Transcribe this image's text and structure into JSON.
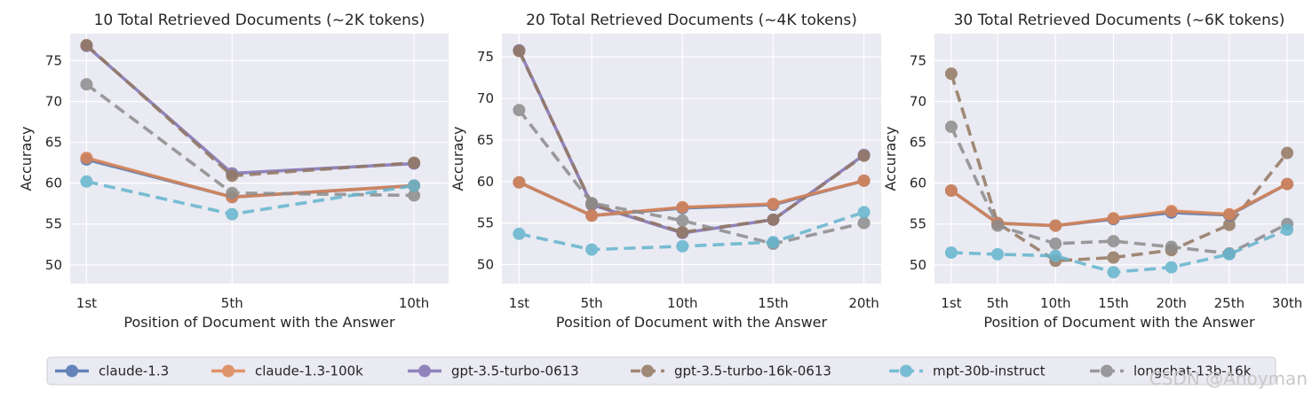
{
  "chart_data": [
    {
      "type": "line",
      "title": "10 Total Retrieved Documents (~2K tokens)",
      "xlabel": "Position of Document with the Answer",
      "ylabel": "Accuracy",
      "x_positions": [
        1,
        5,
        10
      ],
      "x_ticklabels": [
        "1st",
        "5th",
        "10th"
      ],
      "xlim": [
        0.55,
        10.95
      ],
      "ylim": [
        47.7,
        78.3
      ],
      "yticks": [
        50,
        55,
        60,
        65,
        70,
        75
      ],
      "grid": true,
      "series": [
        {
          "name": "claude-1.3",
          "values": [
            62.9,
            58.3,
            59.7
          ]
        },
        {
          "name": "claude-1.3-100k",
          "values": [
            63.1,
            58.3,
            59.7
          ]
        },
        {
          "name": "gpt-3.5-turbo-0613",
          "values": [
            76.8,
            61.2,
            62.4
          ]
        },
        {
          "name": "gpt-3.5-turbo-16k-0613",
          "values": [
            76.9,
            60.9,
            62.5
          ]
        },
        {
          "name": "mpt-30b-instruct",
          "values": [
            60.2,
            56.2,
            59.7
          ]
        },
        {
          "name": "longchat-13b-16k",
          "values": [
            72.1,
            58.8,
            58.5
          ]
        }
      ]
    },
    {
      "type": "line",
      "title": "20 Total Retrieved Documents (~4K tokens)",
      "xlabel": "Position of Document with the Answer",
      "ylabel": "Accuracy",
      "x_positions": [
        1,
        5,
        10,
        15,
        20
      ],
      "x_ticklabels": [
        "1st",
        "5th",
        "10th",
        "15th",
        "20th"
      ],
      "xlim": [
        0.05,
        20.95
      ],
      "ylim": [
        47.7,
        77.8
      ],
      "yticks": [
        50,
        55,
        60,
        65,
        70,
        75
      ],
      "grid": true,
      "series": [
        {
          "name": "claude-1.3",
          "values": [
            59.9,
            55.9,
            56.8,
            57.2,
            60.1
          ]
        },
        {
          "name": "claude-1.3-100k",
          "values": [
            59.9,
            55.9,
            56.9,
            57.3,
            60.1
          ]
        },
        {
          "name": "gpt-3.5-turbo-0613",
          "values": [
            75.8,
            57.2,
            53.8,
            55.4,
            63.2
          ]
        },
        {
          "name": "gpt-3.5-turbo-16k-0613",
          "values": [
            75.7,
            57.3,
            53.9,
            55.4,
            63.1
          ]
        },
        {
          "name": "mpt-30b-instruct",
          "values": [
            53.7,
            51.8,
            52.2,
            52.7,
            56.3
          ]
        },
        {
          "name": "longchat-13b-16k",
          "values": [
            68.6,
            57.4,
            55.3,
            52.5,
            55.0
          ]
        }
      ]
    },
    {
      "type": "line",
      "title": "30 Total Retrieved Documents (~6K tokens)",
      "xlabel": "Position of Document with the Answer",
      "ylabel": "Accuracy",
      "x_positions": [
        1,
        5,
        10,
        15,
        20,
        25,
        30
      ],
      "x_ticklabels": [
        "1st",
        "5th",
        "10th",
        "15th",
        "20th",
        "25th",
        "30th"
      ],
      "xlim": [
        -0.45,
        31.45
      ],
      "ylim": [
        47.7,
        78.3
      ],
      "yticks": [
        50,
        55,
        60,
        65,
        70,
        75
      ],
      "grid": true,
      "series": [
        {
          "name": "claude-1.3",
          "values": [
            59.1,
            55.1,
            54.8,
            55.6,
            56.4,
            56.1,
            59.9
          ]
        },
        {
          "name": "claude-1.3-100k",
          "values": [
            59.1,
            55.1,
            54.8,
            55.7,
            56.6,
            56.2,
            59.9
          ]
        },
        {
          "name": "gpt-3.5-turbo-0613",
          "values": [
            null,
            null,
            null,
            null,
            null,
            null,
            null
          ]
        },
        {
          "name": "gpt-3.5-turbo-16k-0613",
          "values": [
            73.4,
            55.1,
            50.5,
            50.9,
            51.8,
            54.9,
            63.7
          ]
        },
        {
          "name": "mpt-30b-instruct",
          "values": [
            51.5,
            51.3,
            51.1,
            49.1,
            49.7,
            51.3,
            54.3
          ]
        },
        {
          "name": "longchat-13b-16k",
          "values": [
            66.9,
            54.8,
            52.6,
            52.9,
            52.2,
            51.4,
            55.0
          ]
        }
      ]
    }
  ],
  "legend": {
    "placement": "bottom",
    "entries": [
      {
        "name": "claude-1.3",
        "color": "#4c72b0",
        "dashed": false
      },
      {
        "name": "claude-1.3-100k",
        "color": "#dd8452",
        "dashed": false
      },
      {
        "name": "gpt-3.5-turbo-0613",
        "color": "#8172b3",
        "dashed": false
      },
      {
        "name": "gpt-3.5-turbo-16k-0613",
        "color": "#937860",
        "dashed": true
      },
      {
        "name": "mpt-30b-instruct",
        "color": "#64b5cd",
        "dashed": true
      },
      {
        "name": "longchat-13b-16k",
        "color": "#8c8c8c",
        "dashed": true
      }
    ]
  },
  "colors": {
    "plot_background": "#eaeaf2",
    "grid": "#ffffff"
  },
  "watermark": "CSDN @Anoyman"
}
